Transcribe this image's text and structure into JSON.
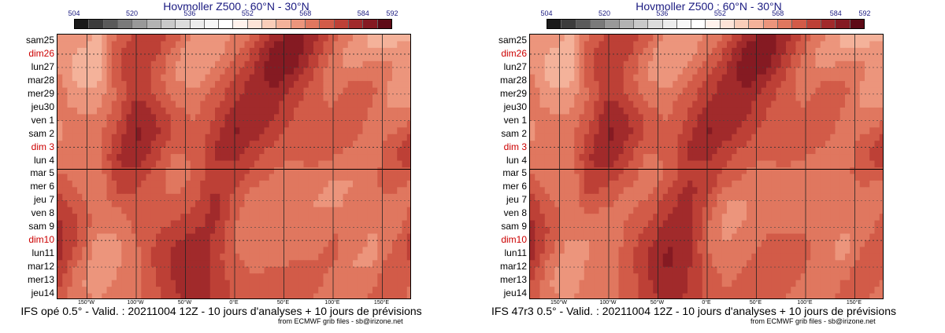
{
  "colorbar_ticks": [
    {
      "label": "504",
      "value": 504
    },
    {
      "label": "520",
      "value": 520
    },
    {
      "label": "536",
      "value": 536
    },
    {
      "label": "552",
      "value": 552
    },
    {
      "label": "568",
      "value": 568
    },
    {
      "label": "584",
      "value": 584
    },
    {
      "label": "592",
      "value": 592
    }
  ],
  "colorbar_colors": [
    "#1a1a1a",
    "#3c3c3c",
    "#5a5a5a",
    "#7a7a7a",
    "#999999",
    "#b3b3b3",
    "#c9c9c9",
    "#dcdcdc",
    "#ececec",
    "#f7f7f7",
    "#ffffff",
    "#fff2ec",
    "#fde3d7",
    "#f9cdb9",
    "#f4b29a",
    "#ec957c",
    "#e0775f",
    "#d25b48",
    "#bd4036",
    "#a12a2b",
    "#851a22",
    "#5e0a16"
  ],
  "days": [
    {
      "label": "sam25",
      "sunday": false
    },
    {
      "label": "dim26",
      "sunday": true
    },
    {
      "label": "lun27",
      "sunday": false
    },
    {
      "label": "mar28",
      "sunday": false
    },
    {
      "label": "mer29",
      "sunday": false
    },
    {
      "label": "jeu30",
      "sunday": false
    },
    {
      "label": "ven 1",
      "sunday": false
    },
    {
      "label": "sam 2",
      "sunday": false
    },
    {
      "label": "dim 3",
      "sunday": true
    },
    {
      "label": "lun 4",
      "sunday": false
    },
    {
      "label": "mar 5",
      "sunday": false
    },
    {
      "label": "mer 6",
      "sunday": false
    },
    {
      "label": "jeu 7",
      "sunday": false
    },
    {
      "label": "ven 8",
      "sunday": false
    },
    {
      "label": "sam 9",
      "sunday": false
    },
    {
      "label": "dim10",
      "sunday": true
    },
    {
      "label": "lun11",
      "sunday": false
    },
    {
      "label": "mar12",
      "sunday": false
    },
    {
      "label": "mer13",
      "sunday": false
    },
    {
      "label": "jeu14",
      "sunday": false
    }
  ],
  "lon_ticks": [
    {
      "label": "150°W",
      "value": -150
    },
    {
      "label": "100°W",
      "value": -100
    },
    {
      "label": "50°W",
      "value": -50
    },
    {
      "label": "0°E",
      "value": 0
    },
    {
      "label": "50°E",
      "value": 50
    },
    {
      "label": "100°E",
      "value": 100
    },
    {
      "label": "150°E",
      "value": 150
    }
  ],
  "credit": "from ECMWF grib files - sb@irizone.net",
  "chart_data": [
    {
      "type": "heatmap",
      "title": "Hovmoller Z500 : 60°N - 30°N",
      "caption": "IFS opé 0.5° - Valid. : 20211004 12Z - 10 jours d'analyses + 10 jours de prévisions",
      "xlim": [
        -180,
        180
      ],
      "colorbar_range": [
        504,
        592
      ],
      "analysis_forecast_split": "mar 5",
      "rows": [
        [
          564,
          566,
          562,
          569,
          573,
          575,
          571,
          565,
          563,
          566,
          570,
          576,
          580,
          578,
          572,
          566,
          562,
          560,
          562
        ],
        [
          565,
          563,
          561,
          571,
          575,
          574,
          568,
          563,
          564,
          568,
          573,
          580,
          582,
          576,
          569,
          564,
          562,
          563,
          565
        ],
        [
          566,
          561,
          560,
          572,
          576,
          572,
          566,
          563,
          566,
          570,
          575,
          582,
          581,
          574,
          567,
          565,
          566,
          566,
          566
        ],
        [
          567,
          562,
          561,
          571,
          576,
          571,
          566,
          564,
          568,
          572,
          577,
          581,
          578,
          572,
          566,
          568,
          569,
          566,
          565
        ],
        [
          568,
          563,
          563,
          570,
          575,
          572,
          567,
          566,
          570,
          574,
          578,
          579,
          575,
          571,
          567,
          571,
          570,
          565,
          564
        ],
        [
          567,
          565,
          565,
          570,
          577,
          574,
          569,
          568,
          572,
          576,
          578,
          577,
          573,
          571,
          569,
          572,
          569,
          565,
          566
        ],
        [
          566,
          567,
          567,
          571,
          579,
          576,
          571,
          569,
          573,
          578,
          578,
          576,
          572,
          571,
          571,
          572,
          568,
          567,
          568
        ],
        [
          565,
          568,
          568,
          573,
          580,
          577,
          572,
          570,
          574,
          580,
          577,
          574,
          571,
          571,
          572,
          571,
          567,
          569,
          572
        ],
        [
          566,
          567,
          568,
          575,
          579,
          575,
          570,
          570,
          576,
          578,
          575,
          572,
          570,
          571,
          571,
          569,
          567,
          571,
          576
        ],
        [
          568,
          566,
          567,
          576,
          577,
          573,
          568,
          570,
          576,
          576,
          573,
          570,
          569,
          570,
          569,
          567,
          567,
          572,
          574
        ],
        [
          570,
          567,
          566,
          574,
          575,
          571,
          567,
          570,
          575,
          575,
          571,
          569,
          568,
          569,
          567,
          566,
          568,
          572,
          570
        ],
        [
          572,
          569,
          566,
          573,
          573,
          570,
          568,
          571,
          576,
          573,
          569,
          568,
          568,
          567,
          565,
          566,
          569,
          570,
          568
        ],
        [
          574,
          571,
          567,
          570,
          572,
          570,
          570,
          572,
          577,
          571,
          567,
          567,
          567,
          566,
          565,
          567,
          569,
          567,
          569
        ],
        [
          576,
          572,
          568,
          568,
          571,
          571,
          572,
          574,
          577,
          570,
          566,
          566,
          567,
          566,
          567,
          568,
          568,
          566,
          571
        ],
        [
          577,
          573,
          567,
          566,
          570,
          572,
          574,
          576,
          576,
          569,
          566,
          566,
          567,
          567,
          569,
          569,
          566,
          567,
          573
        ],
        [
          578,
          572,
          565,
          565,
          569,
          573,
          576,
          578,
          575,
          569,
          567,
          567,
          568,
          568,
          570,
          568,
          565,
          569,
          574
        ],
        [
          577,
          570,
          564,
          565,
          568,
          574,
          577,
          579,
          574,
          570,
          568,
          568,
          569,
          569,
          570,
          566,
          565,
          571,
          573
        ],
        [
          575,
          568,
          563,
          566,
          568,
          573,
          577,
          579,
          574,
          571,
          569,
          570,
          570,
          570,
          569,
          566,
          567,
          572,
          571
        ],
        [
          573,
          567,
          564,
          567,
          568,
          572,
          576,
          578,
          575,
          572,
          570,
          571,
          571,
          570,
          568,
          567,
          569,
          572,
          569
        ],
        [
          571,
          568,
          566,
          568,
          569,
          571,
          575,
          577,
          575,
          572,
          571,
          571,
          571,
          569,
          568,
          568,
          570,
          571,
          568
        ]
      ]
    },
    {
      "type": "heatmap",
      "title": "Hovmoller Z500 : 60°N - 30°N",
      "caption": "IFS 47r3 0.5° - Valid. : 20211004 12Z - 10 jours d'analyses + 10 jours de prévisions",
      "xlim": [
        -180,
        180
      ],
      "colorbar_range": [
        504,
        592
      ],
      "analysis_forecast_split": "mar 5",
      "rows": [
        [
          564,
          566,
          562,
          569,
          573,
          575,
          571,
          565,
          563,
          566,
          570,
          576,
          580,
          578,
          572,
          566,
          562,
          560,
          562
        ],
        [
          565,
          563,
          561,
          571,
          575,
          574,
          568,
          563,
          564,
          568,
          573,
          580,
          582,
          576,
          569,
          564,
          562,
          563,
          565
        ],
        [
          566,
          561,
          560,
          572,
          576,
          572,
          566,
          563,
          566,
          570,
          575,
          582,
          581,
          574,
          567,
          565,
          566,
          566,
          566
        ],
        [
          567,
          562,
          561,
          571,
          576,
          571,
          566,
          564,
          568,
          572,
          577,
          581,
          578,
          572,
          566,
          568,
          569,
          566,
          565
        ],
        [
          568,
          563,
          563,
          570,
          575,
          572,
          567,
          566,
          570,
          574,
          578,
          579,
          575,
          571,
          567,
          571,
          570,
          565,
          564
        ],
        [
          567,
          565,
          565,
          570,
          577,
          574,
          569,
          568,
          572,
          576,
          578,
          577,
          573,
          571,
          569,
          572,
          569,
          565,
          566
        ],
        [
          566,
          567,
          567,
          571,
          579,
          576,
          571,
          569,
          573,
          578,
          578,
          576,
          572,
          571,
          571,
          572,
          568,
          567,
          568
        ],
        [
          565,
          568,
          568,
          573,
          580,
          577,
          572,
          570,
          574,
          580,
          577,
          574,
          571,
          571,
          572,
          571,
          567,
          569,
          572
        ],
        [
          566,
          567,
          568,
          575,
          579,
          575,
          570,
          570,
          576,
          578,
          575,
          572,
          570,
          571,
          571,
          569,
          567,
          571,
          576
        ],
        [
          568,
          566,
          567,
          576,
          577,
          573,
          568,
          570,
          576,
          576,
          573,
          570,
          569,
          570,
          569,
          567,
          567,
          572,
          574
        ],
        [
          570,
          567,
          566,
          574,
          575,
          571,
          567,
          570,
          575,
          575,
          571,
          569,
          568,
          569,
          567,
          566,
          568,
          572,
          570
        ],
        [
          572,
          568,
          566,
          574,
          572,
          569,
          568,
          572,
          577,
          574,
          569,
          567,
          568,
          568,
          566,
          566,
          568,
          569,
          567
        ],
        [
          574,
          570,
          567,
          571,
          570,
          568,
          570,
          574,
          578,
          572,
          566,
          566,
          568,
          567,
          566,
          566,
          568,
          566,
          568
        ],
        [
          576,
          571,
          568,
          569,
          568,
          569,
          571,
          576,
          579,
          570,
          565,
          566,
          568,
          568,
          567,
          567,
          567,
          566,
          570
        ],
        [
          577,
          572,
          567,
          567,
          567,
          570,
          573,
          578,
          579,
          569,
          565,
          567,
          569,
          569,
          569,
          568,
          566,
          567,
          572
        ],
        [
          578,
          571,
          565,
          566,
          566,
          571,
          575,
          579,
          578,
          569,
          566,
          568,
          570,
          570,
          570,
          567,
          565,
          569,
          573
        ],
        [
          577,
          569,
          564,
          566,
          566,
          572,
          576,
          580,
          577,
          570,
          567,
          569,
          571,
          571,
          570,
          566,
          566,
          571,
          572
        ],
        [
          575,
          567,
          563,
          567,
          567,
          571,
          576,
          579,
          576,
          571,
          568,
          570,
          571,
          571,
          569,
          566,
          568,
          572,
          570
        ],
        [
          573,
          566,
          564,
          568,
          568,
          570,
          575,
          578,
          576,
          572,
          569,
          571,
          571,
          570,
          568,
          567,
          570,
          571,
          568
        ],
        [
          571,
          567,
          566,
          569,
          569,
          570,
          574,
          577,
          575,
          572,
          570,
          571,
          571,
          569,
          568,
          568,
          571,
          570,
          567
        ]
      ]
    }
  ]
}
